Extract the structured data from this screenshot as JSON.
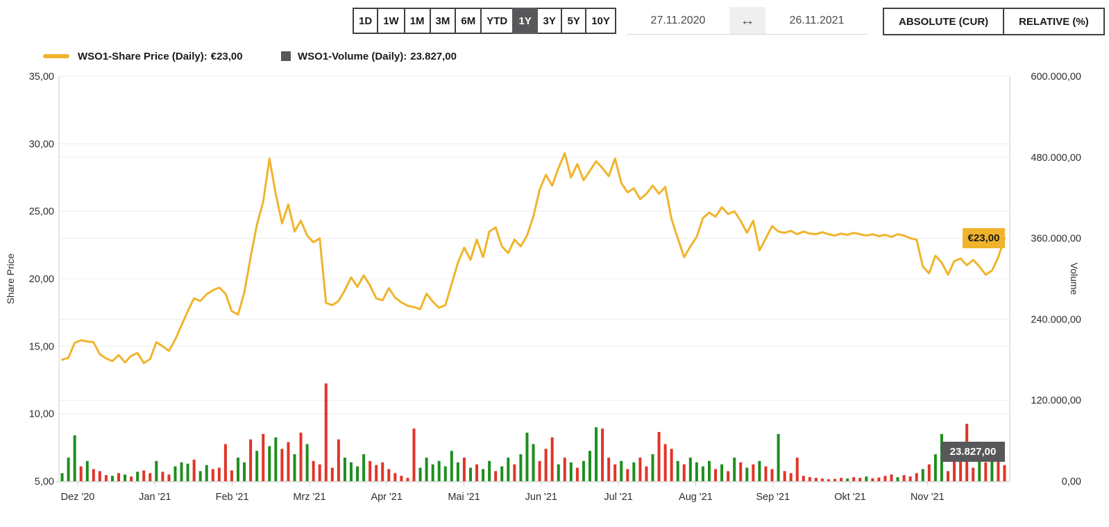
{
  "toolbar": {
    "range_buttons": [
      "1D",
      "1W",
      "1M",
      "3M",
      "6M",
      "YTD",
      "1Y",
      "3Y",
      "5Y",
      "10Y"
    ],
    "active_range": "1Y",
    "date_from": "27.11.2020",
    "date_to": "26.11.2021",
    "swap_icon_glyph": "↔",
    "mode_buttons": [
      "ABSOLUTE (CUR)",
      "RELATIVE (%)"
    ]
  },
  "legend": {
    "price": {
      "label": "WSO1-Share Price (Daily):",
      "value": "€23,00"
    },
    "volume": {
      "label": "WSO1-Volume (Daily):",
      "value": "23.827,00"
    }
  },
  "colors": {
    "price_line": "#F0B42C",
    "volume_up": "#1E8E1E",
    "volume_down": "#E13428",
    "badge_volume_bg": "#58585A",
    "grid": "#ECECEC",
    "axis_line": "#CCCCCC",
    "tick_text": "#2E2E2E"
  },
  "chart_data": {
    "type": "line+bar",
    "title": "",
    "x_tick_labels": [
      "Dez '20",
      "Jan '21",
      "Feb '21",
      "Mrz '21",
      "Apr '21",
      "Mai '21",
      "Jun '21",
      "Jul '21",
      "Aug '21",
      "Sep '21",
      "Okt '21",
      "Nov '21"
    ],
    "left_axis": {
      "label": "Share Price",
      "min": 5,
      "max": 35,
      "ticks": [
        "35,00",
        "30,00",
        "25,00",
        "20,00",
        "15,00",
        "10,00",
        "5,00"
      ],
      "tick_values": [
        35,
        30,
        25,
        20,
        15,
        10,
        5
      ]
    },
    "right_axis": {
      "label": "Volume",
      "min": 0,
      "max": 600000,
      "ticks": [
        "600.000,00",
        "480.000,00",
        "360.000,00",
        "240.000,00",
        "120.000,00",
        "0,00"
      ],
      "tick_values": [
        600000,
        480000,
        360000,
        240000,
        120000,
        0
      ]
    },
    "annotations": {
      "price_badge": "€23,00",
      "volume_badge": "23.827,00"
    },
    "series": [
      {
        "name": "WSO1-Share Price (Daily)",
        "type": "line",
        "current": "€23,00",
        "values": [
          14.0,
          14.15,
          15.25,
          15.45,
          15.35,
          15.3,
          14.4,
          14.1,
          13.9,
          14.35,
          13.8,
          14.3,
          14.5,
          13.75,
          14.05,
          15.3,
          15.0,
          14.65,
          15.5,
          16.55,
          17.6,
          18.55,
          18.35,
          18.85,
          19.15,
          19.35,
          18.9,
          17.6,
          17.35,
          19.0,
          21.6,
          24.0,
          25.7,
          28.9,
          26.3,
          24.1,
          25.5,
          23.5,
          24.3,
          23.2,
          22.7,
          23.0,
          18.2,
          18.05,
          18.35,
          19.15,
          20.1,
          19.4,
          20.25,
          19.5,
          18.55,
          18.4,
          19.3,
          18.6,
          18.25,
          18.0,
          17.9,
          17.75,
          18.9,
          18.3,
          17.85,
          18.05,
          19.6,
          21.2,
          22.3,
          21.4,
          22.9,
          21.6,
          23.5,
          23.8,
          22.4,
          21.9,
          22.9,
          22.4,
          23.2,
          24.6,
          26.6,
          27.7,
          26.9,
          28.2,
          29.3,
          27.5,
          28.5,
          27.3,
          28.0,
          28.7,
          28.2,
          27.6,
          28.9,
          27.1,
          26.4,
          26.7,
          25.9,
          26.3,
          26.9,
          26.3,
          26.8,
          24.4,
          23.0,
          21.6,
          22.4,
          23.1,
          24.5,
          24.9,
          24.6,
          25.3,
          24.8,
          25.0,
          24.3,
          23.4,
          24.3,
          22.1,
          23.0,
          23.9,
          23.5,
          23.4,
          23.55,
          23.3,
          23.5,
          23.35,
          23.3,
          23.45,
          23.3,
          23.2,
          23.35,
          23.25,
          23.4,
          23.3,
          23.2,
          23.3,
          23.15,
          23.25,
          23.1,
          23.3,
          23.2,
          23.0,
          22.9,
          20.9,
          20.4,
          21.7,
          21.2,
          20.3,
          21.3,
          21.5,
          21.0,
          21.4,
          20.9,
          20.3,
          20.6,
          21.6,
          23.0
        ]
      },
      {
        "name": "WSO1-Volume (Daily)",
        "type": "bar",
        "current": "23.827,00",
        "values": [
          12000,
          35000,
          68000,
          22000,
          30000,
          18000,
          15000,
          9000,
          8000,
          12000,
          10000,
          7000,
          14000,
          16000,
          12000,
          30000,
          14000,
          10000,
          22000,
          28000,
          26000,
          32000,
          15000,
          24000,
          18000,
          20000,
          55000,
          16000,
          35000,
          28000,
          62000,
          45000,
          70000,
          52000,
          65000,
          48000,
          58000,
          40000,
          72000,
          55000,
          30000,
          25000,
          145000,
          20000,
          62000,
          35000,
          28000,
          22000,
          40000,
          30000,
          24000,
          28000,
          18000,
          12000,
          8000,
          5000,
          78000,
          20000,
          35000,
          25000,
          30000,
          22000,
          45000,
          28000,
          35000,
          20000,
          25000,
          18000,
          30000,
          15000,
          22000,
          35000,
          25000,
          40000,
          72000,
          55000,
          30000,
          48000,
          65000,
          25000,
          35000,
          28000,
          20000,
          30000,
          45000,
          80000,
          78000,
          35000,
          25000,
          30000,
          18000,
          28000,
          35000,
          22000,
          40000,
          73000,
          55000,
          48000,
          30000,
          25000,
          35000,
          28000,
          22000,
          30000,
          18000,
          25000,
          15000,
          35000,
          28000,
          20000,
          25000,
          30000,
          22000,
          18000,
          70000,
          15000,
          12000,
          35000,
          8000,
          6000,
          5000,
          4000,
          3000,
          3500,
          5000,
          4000,
          6000,
          5000,
          7000,
          4500,
          5500,
          8000,
          10000,
          6000,
          9000,
          7000,
          12000,
          18000,
          25000,
          40000,
          70000,
          15000,
          30000,
          55000,
          85000,
          20000,
          35000,
          28000,
          46000,
          52000,
          23827
        ],
        "directions": "gggrgrrrgrgrgrrgrrgggrggrrrrggrgrggrrgrgrrrrrggggrrrrrrrrgggggggrgrggrggrgggrrrgrgrgggrrrgrgrrgrrrgrggggrgrgrgrgrrgrrrrrrrrrrgrrgrrrrgrrrgrggrrrrrgrgrr"
      }
    ]
  }
}
